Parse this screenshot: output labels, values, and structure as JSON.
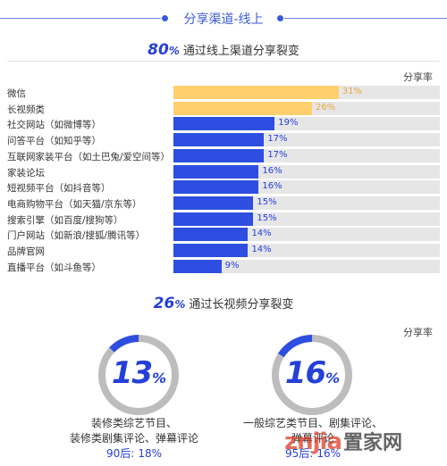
{
  "header": {
    "title": "分享渠道-线上"
  },
  "online": {
    "percent": "80",
    "unit": "%",
    "text": "通过线上渠道分享裂变",
    "share_label": "分享率"
  },
  "video": {
    "percent": "26",
    "unit": "%",
    "text": "通过长视频分享裂变",
    "share_label": "分享率"
  },
  "colors": {
    "highlight": "#ffcf6e",
    "highlight_text": "#e8a63b",
    "primary": "#2d4ee0",
    "primary_text": "#2440d8",
    "track": "#e6e6e6"
  },
  "chart_data": [
    {
      "type": "bar",
      "orientation": "horizontal",
      "title": "",
      "xlim": [
        0,
        50
      ],
      "categories": [
        "微信",
        "长视频类",
        "社交网站（如微博等）",
        "问答平台（如知乎等）",
        "互联网家装平台（如土巴兔/爱空间等）",
        "家装论坛",
        "短视频平台（如抖音等）",
        "电商购物平台（如天猫/京东等）",
        "搜索引擎（如百度/搜狗等）",
        "门户网站（如新浪/搜狐/腾讯等）",
        "品牌官网",
        "直播平台（如斗鱼等）"
      ],
      "values": [
        31,
        26,
        19,
        17,
        17,
        16,
        16,
        15,
        15,
        14,
        14,
        9
      ],
      "labels": [
        "31%",
        "26%",
        "19%",
        "17%",
        "17%",
        "16%",
        "16%",
        "15%",
        "15%",
        "14%",
        "14%",
        "9%"
      ],
      "highlighted": [
        true,
        true,
        false,
        false,
        false,
        false,
        false,
        false,
        false,
        false,
        false,
        false
      ]
    },
    {
      "type": "pie",
      "variant": "donut",
      "items": [
        {
          "value": 13,
          "display": "13",
          "unit": "%",
          "caption_lines": [
            "装修类综艺节目、",
            "装修类剧集评论、弹幕评论"
          ],
          "age_label": "90后:",
          "age_value": "18%"
        },
        {
          "value": 16,
          "display": "16",
          "unit": "%",
          "caption_lines": [
            "一般综艺类节目、剧集评论、",
            "弹幕评论"
          ],
          "age_label": "95后:",
          "age_value": "16%"
        }
      ]
    }
  ],
  "watermark": {
    "logo": "znjia",
    "text": "置家网"
  }
}
